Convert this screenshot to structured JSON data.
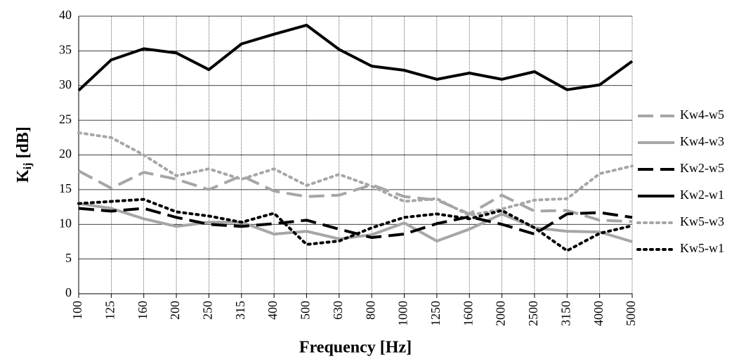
{
  "chart_data": {
    "type": "line",
    "x_label": "Frequency [Hz]",
    "y_label": {
      "main": "K",
      "subscript": "ij",
      "unit": "[dB]"
    },
    "categories": [
      "100",
      "125",
      "160",
      "200",
      "250",
      "315",
      "400",
      "500",
      "630",
      "800",
      "1000",
      "1250",
      "1600",
      "2000",
      "2500",
      "3150",
      "4000",
      "5000"
    ],
    "ylim": [
      0,
      40
    ],
    "yticks": [
      0,
      5,
      10,
      15,
      20,
      25,
      30,
      35,
      40
    ],
    "grid": true,
    "legend": "right",
    "series": [
      {
        "name": "Kw4-w5",
        "color": "#a6a6a6",
        "dash": "dashed",
        "values": [
          17.7,
          15.2,
          17.5,
          16.5,
          15,
          17,
          14.8,
          14,
          14.2,
          15.7,
          14,
          13.5,
          11.5,
          14.2,
          11.9,
          12,
          10.6,
          10.4
        ]
      },
      {
        "name": "Kw4-w3",
        "color": "#a6a6a6",
        "dash": "solid",
        "values": [
          13,
          12.3,
          10.8,
          9.7,
          10.3,
          10.3,
          8.6,
          9,
          7.9,
          8.5,
          10.2,
          7.6,
          9.3,
          11.5,
          9.5,
          9,
          8.9,
          7.5
        ]
      },
      {
        "name": "Kw2-w5",
        "color": "#000000",
        "dash": "dashed",
        "values": [
          12.3,
          11.9,
          12.3,
          11,
          10,
          9.7,
          10.1,
          10.6,
          9.3,
          8.1,
          8.6,
          10.1,
          11.1,
          10,
          8.6,
          11.5,
          11.7,
          11
        ]
      },
      {
        "name": "Kw2-w1",
        "color": "#000000",
        "dash": "solid",
        "values": [
          29.3,
          33.7,
          35.3,
          34.7,
          32.3,
          36,
          37.4,
          38.7,
          35.2,
          32.8,
          32.2,
          30.9,
          31.8,
          30.9,
          32,
          29.4,
          30.1,
          33.5
        ]
      },
      {
        "name": "Kw5-w3",
        "color": "#a6a6a6",
        "dash": "dotted",
        "values": [
          23.2,
          22.5,
          20,
          17,
          18,
          16.5,
          18,
          15.6,
          17.2,
          15.5,
          13.3,
          13.7,
          11.3,
          12.2,
          13.5,
          13.7,
          17.3,
          18.4
        ]
      },
      {
        "name": "Kw5-w1",
        "color": "#000000",
        "dash": "dotted",
        "values": [
          13,
          13.3,
          13.6,
          11.8,
          11.2,
          10.3,
          11.6,
          7.1,
          7.6,
          9.5,
          11,
          11.5,
          10.8,
          12,
          9.5,
          6.2,
          8.7,
          9.8
        ]
      }
    ]
  }
}
